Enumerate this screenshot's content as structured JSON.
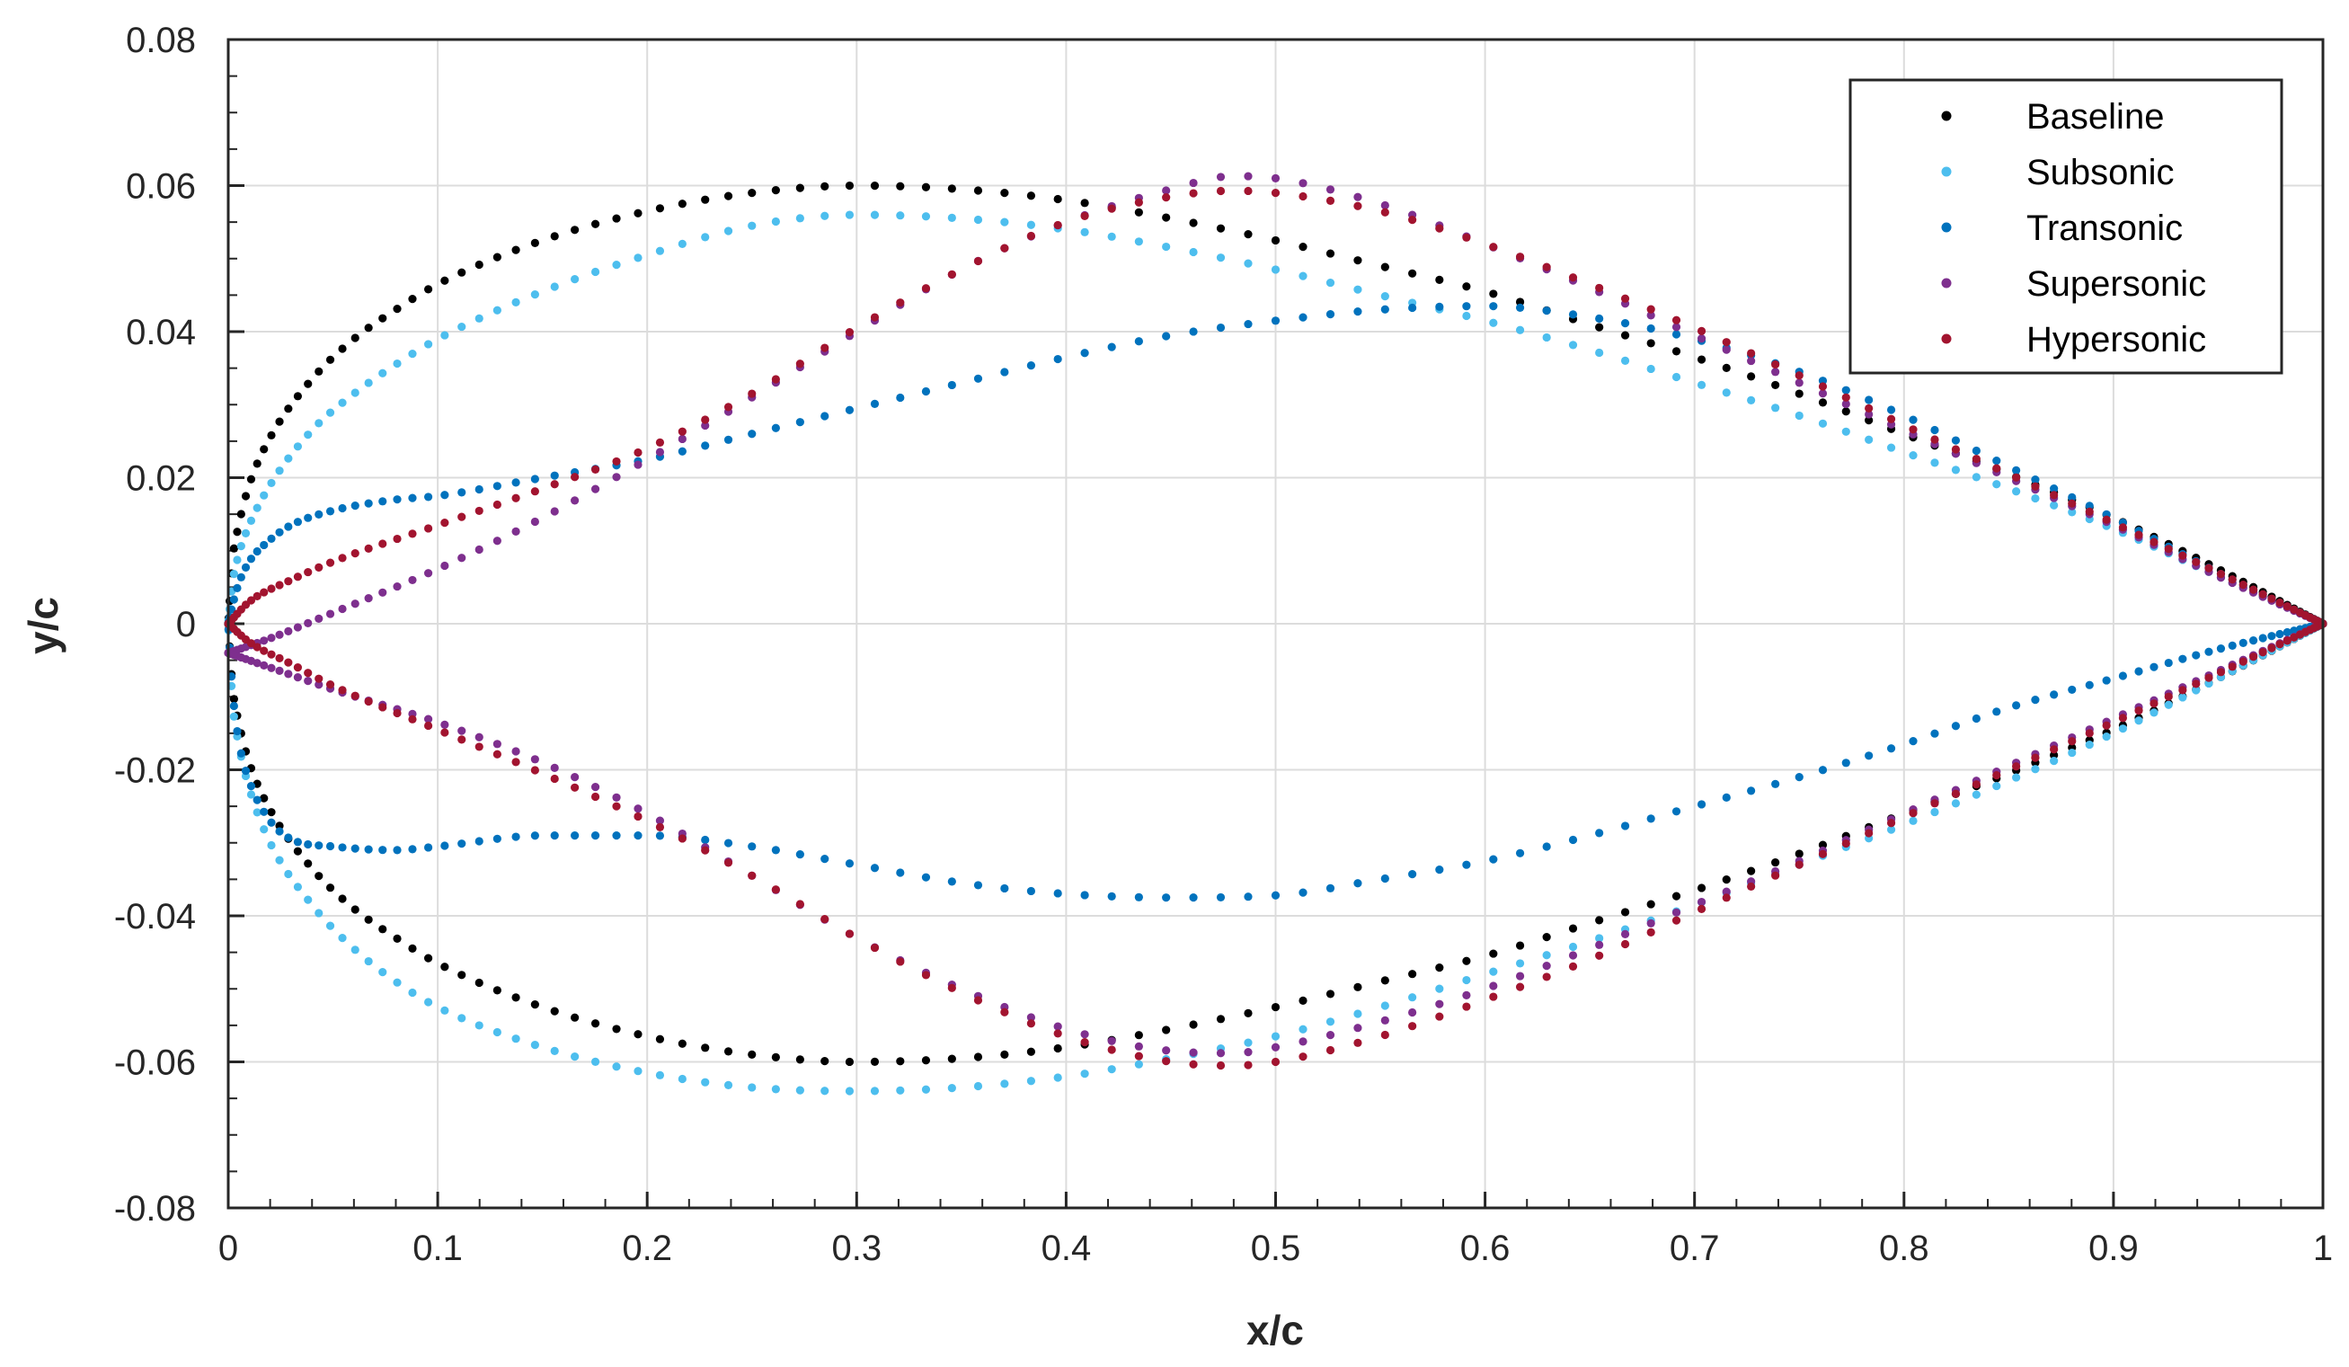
{
  "chart_data": {
    "type": "scatter",
    "title": "",
    "xlabel": "x/c",
    "ylabel": "y/c",
    "xlim": [
      0,
      1
    ],
    "ylim": [
      -0.08,
      0.08
    ],
    "x_ticks": [
      0,
      0.1,
      0.2,
      0.3,
      0.4,
      0.5,
      0.6,
      0.7,
      0.8,
      0.9,
      1
    ],
    "x_tick_labels": [
      "0",
      "0.1",
      "0.2",
      "0.3",
      "0.4",
      "0.5",
      "0.6",
      "0.7",
      "0.8",
      "0.9",
      "1"
    ],
    "y_ticks": [
      -0.08,
      -0.06,
      -0.04,
      -0.02,
      0,
      0.02,
      0.04,
      0.06,
      0.08
    ],
    "y_tick_labels": [
      "-0.08",
      "-0.06",
      "-0.04",
      "-0.02",
      "0",
      "0.02",
      "0.04",
      "0.06",
      "0.08"
    ],
    "grid": true,
    "legend_position": "top-right",
    "points_per_surface": 120,
    "series": [
      {
        "name": "Baseline",
        "color": "#000000",
        "upper": [
          [
            0,
            0
          ],
          [
            0.002,
            0.0085
          ],
          [
            0.005,
            0.0135
          ],
          [
            0.01,
            0.019
          ],
          [
            0.02,
            0.0255
          ],
          [
            0.04,
            0.0335
          ],
          [
            0.06,
            0.039
          ],
          [
            0.08,
            0.043
          ],
          [
            0.1,
            0.0465
          ],
          [
            0.15,
            0.0525
          ],
          [
            0.2,
            0.0565
          ],
          [
            0.25,
            0.059
          ],
          [
            0.3,
            0.06
          ],
          [
            0.35,
            0.0595
          ],
          [
            0.4,
            0.058
          ],
          [
            0.45,
            0.0555
          ],
          [
            0.5,
            0.0525
          ],
          [
            0.55,
            0.049
          ],
          [
            0.6,
            0.0455
          ],
          [
            0.65,
            0.041
          ],
          [
            0.7,
            0.0365
          ],
          [
            0.75,
            0.0315
          ],
          [
            0.8,
            0.026
          ],
          [
            0.85,
            0.0205
          ],
          [
            0.9,
            0.0145
          ],
          [
            0.95,
            0.0075
          ],
          [
            1,
            0
          ]
        ],
        "lower": [
          [
            0,
            0
          ],
          [
            0.002,
            -0.0085
          ],
          [
            0.005,
            -0.0135
          ],
          [
            0.01,
            -0.019
          ],
          [
            0.02,
            -0.0255
          ],
          [
            0.04,
            -0.0335
          ],
          [
            0.06,
            -0.039
          ],
          [
            0.08,
            -0.043
          ],
          [
            0.1,
            -0.0465
          ],
          [
            0.15,
            -0.0525
          ],
          [
            0.2,
            -0.0565
          ],
          [
            0.25,
            -0.059
          ],
          [
            0.3,
            -0.06
          ],
          [
            0.35,
            -0.0595
          ],
          [
            0.4,
            -0.058
          ],
          [
            0.45,
            -0.0555
          ],
          [
            0.5,
            -0.0525
          ],
          [
            0.55,
            -0.049
          ],
          [
            0.6,
            -0.0455
          ],
          [
            0.65,
            -0.041
          ],
          [
            0.7,
            -0.0365
          ],
          [
            0.75,
            -0.0315
          ],
          [
            0.8,
            -0.026
          ],
          [
            0.85,
            -0.0205
          ],
          [
            0.9,
            -0.0145
          ],
          [
            0.95,
            -0.0075
          ],
          [
            1,
            0
          ]
        ]
      },
      {
        "name": "Subsonic",
        "color": "#4dbeee",
        "upper": [
          [
            0,
            0
          ],
          [
            0.002,
            0.0055
          ],
          [
            0.005,
            0.0095
          ],
          [
            0.01,
            0.0135
          ],
          [
            0.02,
            0.019
          ],
          [
            0.04,
            0.0265
          ],
          [
            0.06,
            0.0315
          ],
          [
            0.08,
            0.0355
          ],
          [
            0.1,
            0.039
          ],
          [
            0.15,
            0.0455
          ],
          [
            0.2,
            0.0505
          ],
          [
            0.25,
            0.0545
          ],
          [
            0.3,
            0.056
          ],
          [
            0.35,
            0.0555
          ],
          [
            0.4,
            0.054
          ],
          [
            0.45,
            0.0515
          ],
          [
            0.5,
            0.0485
          ],
          [
            0.55,
            0.045
          ],
          [
            0.6,
            0.0415
          ],
          [
            0.65,
            0.0375
          ],
          [
            0.7,
            0.033
          ],
          [
            0.75,
            0.0285
          ],
          [
            0.8,
            0.0235
          ],
          [
            0.85,
            0.0185
          ],
          [
            0.9,
            0.013
          ],
          [
            0.95,
            0.0065
          ],
          [
            1,
            0
          ]
        ],
        "lower": [
          [
            0,
            0
          ],
          [
            0.002,
            -0.0105
          ],
          [
            0.005,
            -0.0165
          ],
          [
            0.01,
            -0.0225
          ],
          [
            0.02,
            -0.03
          ],
          [
            0.04,
            -0.0385
          ],
          [
            0.06,
            -0.0445
          ],
          [
            0.08,
            -0.049
          ],
          [
            0.1,
            -0.0525
          ],
          [
            0.15,
            -0.058
          ],
          [
            0.2,
            -0.0615
          ],
          [
            0.25,
            -0.0635
          ],
          [
            0.3,
            -0.064
          ],
          [
            0.35,
            -0.0635
          ],
          [
            0.4,
            -0.062
          ],
          [
            0.45,
            -0.0595
          ],
          [
            0.5,
            -0.0565
          ],
          [
            0.55,
            -0.0525
          ],
          [
            0.6,
            -0.048
          ],
          [
            0.65,
            -0.0435
          ],
          [
            0.7,
            -0.0385
          ],
          [
            0.75,
            -0.033
          ],
          [
            0.8,
            -0.0275
          ],
          [
            0.85,
            -0.0215
          ],
          [
            0.9,
            -0.015
          ],
          [
            0.95,
            -0.0075
          ],
          [
            1,
            0
          ]
        ]
      },
      {
        "name": "Transonic",
        "color": "#0072bd",
        "upper": [
          [
            0,
            0
          ],
          [
            0.002,
            0.0025
          ],
          [
            0.005,
            0.0055
          ],
          [
            0.01,
            0.0085
          ],
          [
            0.02,
            0.0115
          ],
          [
            0.03,
            0.0135
          ],
          [
            0.05,
            0.0155
          ],
          [
            0.08,
            0.017
          ],
          [
            0.1,
            0.0175
          ],
          [
            0.15,
            0.02
          ],
          [
            0.2,
            0.0225
          ],
          [
            0.25,
            0.026
          ],
          [
            0.3,
            0.0295
          ],
          [
            0.35,
            0.033
          ],
          [
            0.4,
            0.0365
          ],
          [
            0.45,
            0.0395
          ],
          [
            0.5,
            0.0415
          ],
          [
            0.55,
            0.043
          ],
          [
            0.6,
            0.0435
          ],
          [
            0.65,
            0.042
          ],
          [
            0.7,
            0.039
          ],
          [
            0.75,
            0.0345
          ],
          [
            0.8,
            0.0285
          ],
          [
            0.85,
            0.0215
          ],
          [
            0.9,
            0.0145
          ],
          [
            0.95,
            0.007
          ],
          [
            1,
            0
          ]
        ],
        "lower": [
          [
            0,
            0
          ],
          [
            0.002,
            -0.009
          ],
          [
            0.005,
            -0.016
          ],
          [
            0.01,
            -0.0215
          ],
          [
            0.02,
            -0.027
          ],
          [
            0.03,
            -0.0295
          ],
          [
            0.05,
            -0.0305
          ],
          [
            0.08,
            -0.031
          ],
          [
            0.1,
            -0.0305
          ],
          [
            0.15,
            -0.029
          ],
          [
            0.2,
            -0.029
          ],
          [
            0.25,
            -0.0305
          ],
          [
            0.3,
            -0.033
          ],
          [
            0.35,
            -0.0355
          ],
          [
            0.4,
            -0.037
          ],
          [
            0.45,
            -0.0375
          ],
          [
            0.5,
            -0.0372
          ],
          [
            0.55,
            -0.035
          ],
          [
            0.6,
            -0.0325
          ],
          [
            0.65,
            -0.029
          ],
          [
            0.7,
            -0.025
          ],
          [
            0.75,
            -0.021
          ],
          [
            0.8,
            -0.0165
          ],
          [
            0.85,
            -0.0115
          ],
          [
            0.9,
            -0.0075
          ],
          [
            0.95,
            -0.0035
          ],
          [
            1,
            0
          ]
        ]
      },
      {
        "name": "Supersonic",
        "color": "#7e2f8e",
        "upper": [
          [
            0,
            -0.004
          ],
          [
            0.02,
            -0.002
          ],
          [
            0.05,
            0.0015
          ],
          [
            0.1,
            0.0075
          ],
          [
            0.15,
            0.0145
          ],
          [
            0.2,
            0.0225
          ],
          [
            0.25,
            0.031
          ],
          [
            0.3,
            0.04
          ],
          [
            0.35,
            0.0485
          ],
          [
            0.4,
            0.055
          ],
          [
            0.45,
            0.0595
          ],
          [
            0.48,
            0.0613
          ],
          [
            0.5,
            0.061
          ],
          [
            0.55,
            0.0575
          ],
          [
            0.6,
            0.052
          ],
          [
            0.65,
            0.046
          ],
          [
            0.7,
            0.0395
          ],
          [
            0.75,
            0.033
          ],
          [
            0.8,
            0.0265
          ],
          [
            0.85,
            0.02
          ],
          [
            0.9,
            0.0135
          ],
          [
            0.95,
            0.0065
          ],
          [
            1,
            0
          ]
        ],
        "lower": [
          [
            0,
            -0.004
          ],
          [
            0.02,
            -0.006
          ],
          [
            0.05,
            -0.009
          ],
          [
            0.1,
            -0.0135
          ],
          [
            0.15,
            -0.019
          ],
          [
            0.2,
            -0.026
          ],
          [
            0.25,
            -0.0345
          ],
          [
            0.3,
            -0.043
          ],
          [
            0.35,
            -0.05
          ],
          [
            0.4,
            -0.0555
          ],
          [
            0.45,
            -0.0585
          ],
          [
            0.48,
            -0.0588
          ],
          [
            0.5,
            -0.058
          ],
          [
            0.55,
            -0.0545
          ],
          [
            0.6,
            -0.05
          ],
          [
            0.65,
            -0.0445
          ],
          [
            0.7,
            -0.0385
          ],
          [
            0.75,
            -0.0325
          ],
          [
            0.8,
            -0.026
          ],
          [
            0.85,
            -0.0195
          ],
          [
            0.9,
            -0.013
          ],
          [
            0.95,
            -0.0065
          ],
          [
            1,
            0
          ]
        ]
      },
      {
        "name": "Hypersonic",
        "color": "#a2142f",
        "upper": [
          [
            0,
            0
          ],
          [
            0.01,
            0.003
          ],
          [
            0.03,
            0.006
          ],
          [
            0.05,
            0.0085
          ],
          [
            0.1,
            0.0135
          ],
          [
            0.15,
            0.0185
          ],
          [
            0.2,
            0.024
          ],
          [
            0.25,
            0.0315
          ],
          [
            0.3,
            0.0405
          ],
          [
            0.35,
            0.0485
          ],
          [
            0.4,
            0.055
          ],
          [
            0.45,
            0.0585
          ],
          [
            0.48,
            0.0593
          ],
          [
            0.5,
            0.059
          ],
          [
            0.55,
            0.0565
          ],
          [
            0.6,
            0.052
          ],
          [
            0.65,
            0.0465
          ],
          [
            0.7,
            0.0405
          ],
          [
            0.75,
            0.034
          ],
          [
            0.8,
            0.0272
          ],
          [
            0.85,
            0.0205
          ],
          [
            0.9,
            0.0138
          ],
          [
            0.95,
            0.007
          ],
          [
            1,
            0
          ]
        ],
        "lower": [
          [
            0,
            0
          ],
          [
            0.01,
            -0.0025
          ],
          [
            0.03,
            -0.0055
          ],
          [
            0.05,
            -0.0085
          ],
          [
            0.1,
            -0.0145
          ],
          [
            0.15,
            -0.0205
          ],
          [
            0.2,
            -0.027
          ],
          [
            0.25,
            -0.0345
          ],
          [
            0.3,
            -0.043
          ],
          [
            0.35,
            -0.0505
          ],
          [
            0.4,
            -0.0565
          ],
          [
            0.45,
            -0.06
          ],
          [
            0.48,
            -0.0605
          ],
          [
            0.5,
            -0.06
          ],
          [
            0.55,
            -0.0565
          ],
          [
            0.6,
            -0.0515
          ],
          [
            0.65,
            -0.046
          ],
          [
            0.7,
            -0.0395
          ],
          [
            0.75,
            -0.033
          ],
          [
            0.8,
            -0.0265
          ],
          [
            0.85,
            -0.02
          ],
          [
            0.9,
            -0.0135
          ],
          [
            0.95,
            -0.0068
          ],
          [
            1,
            0
          ]
        ]
      }
    ]
  }
}
